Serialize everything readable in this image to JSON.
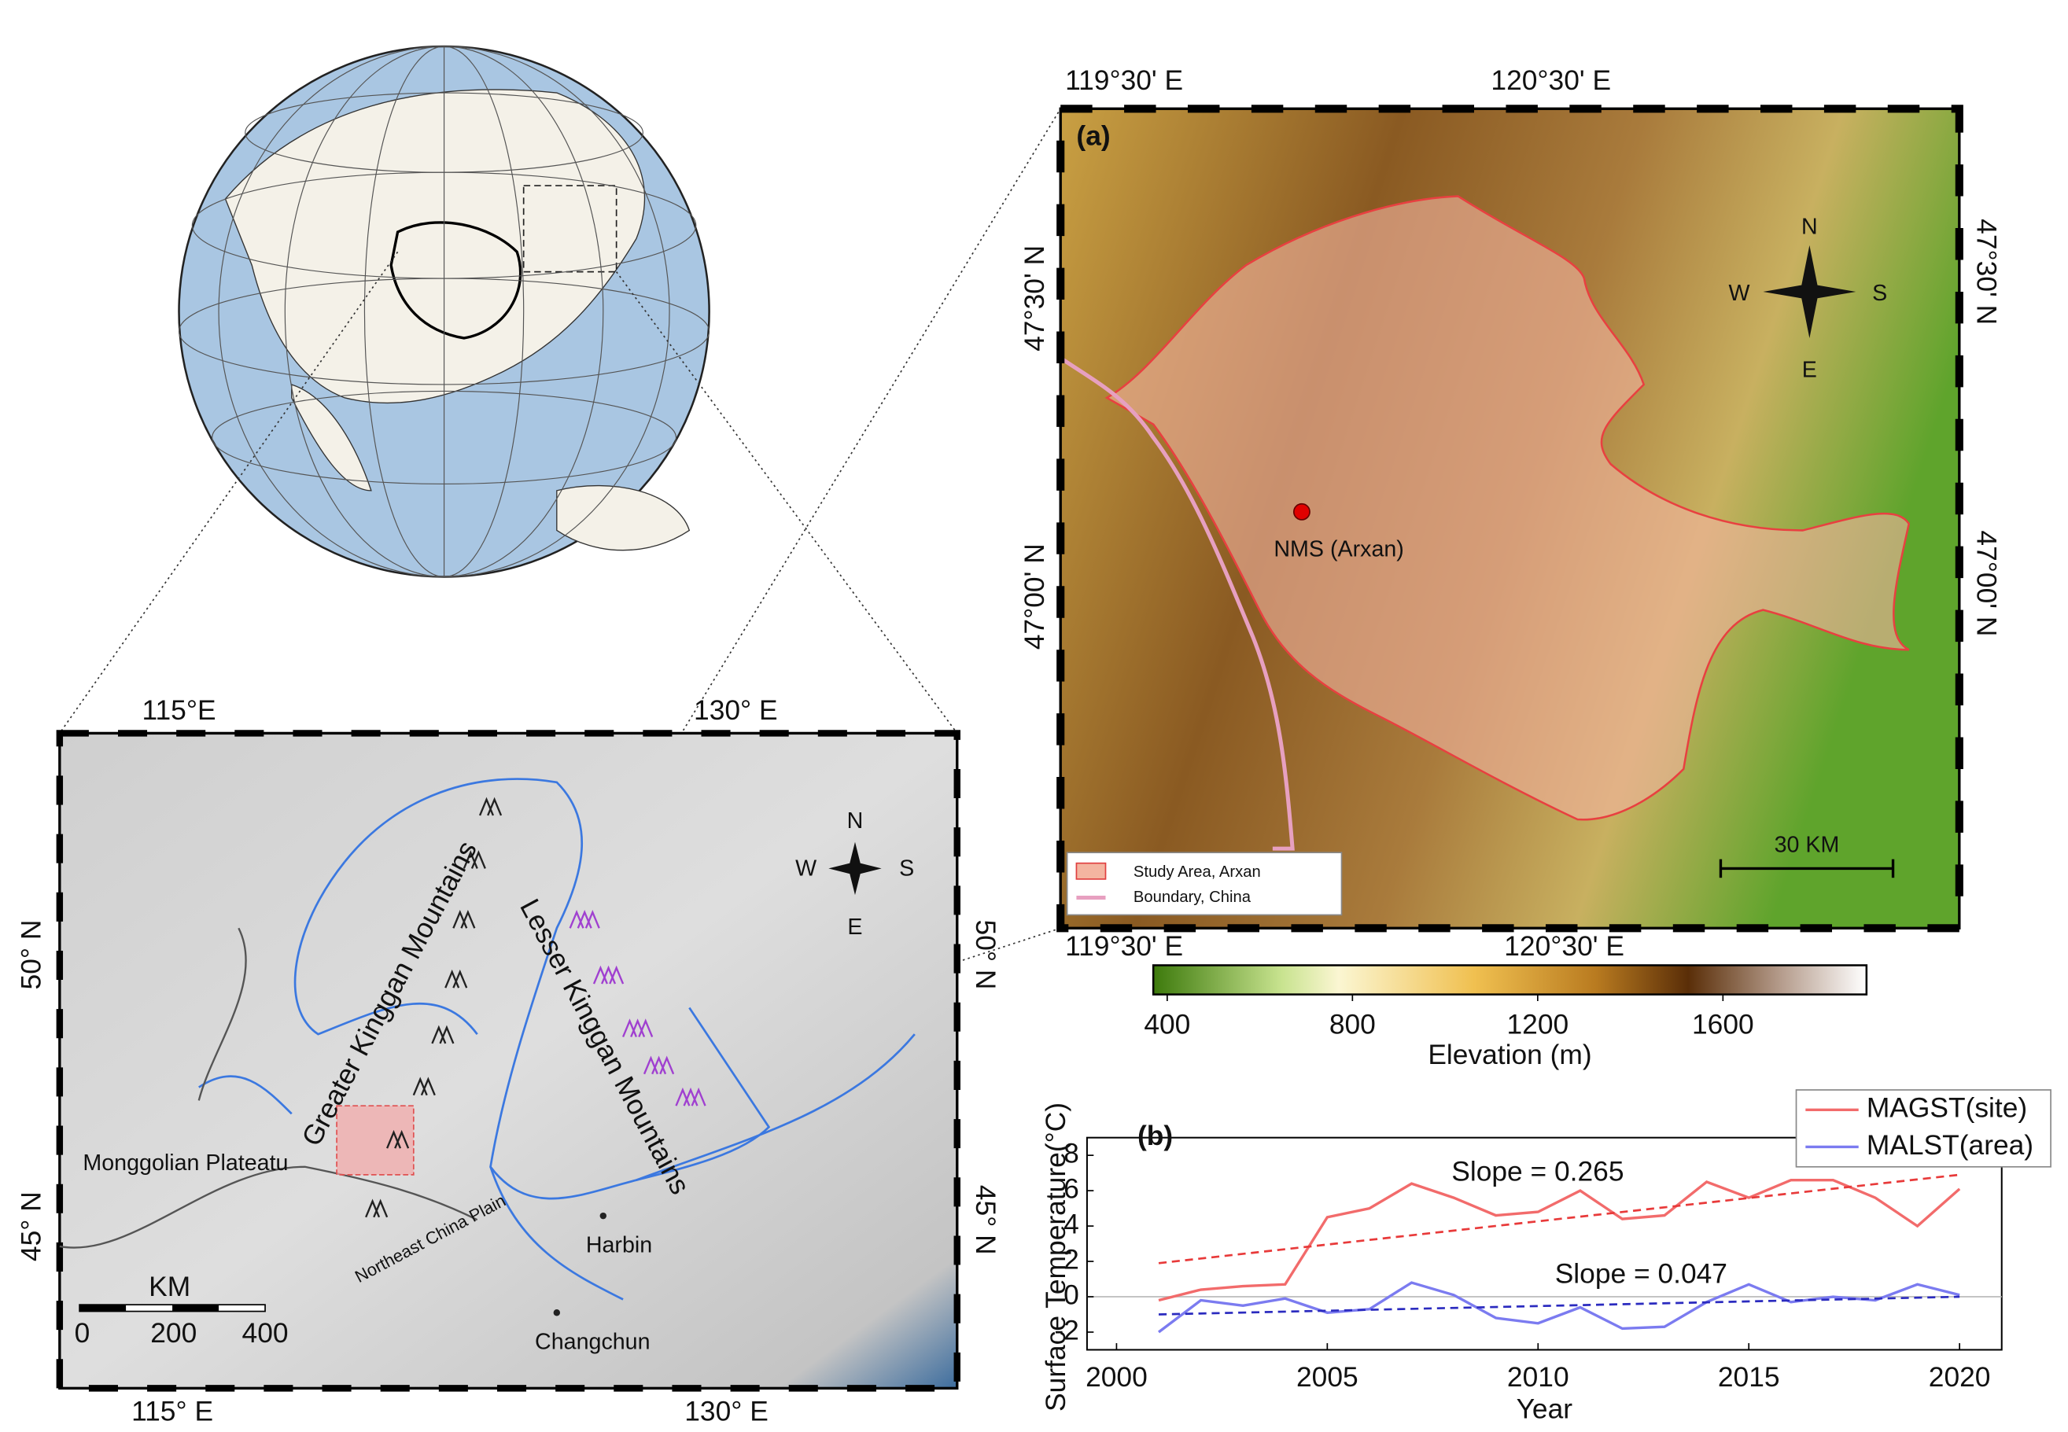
{
  "regional_map": {
    "lon_top": [
      "115°E",
      "130° E"
    ],
    "lon_bottom": [
      "115° E",
      "130° E"
    ],
    "lat_left": [
      "50° N",
      "45° N"
    ],
    "lat_right": [
      "50° N",
      "45° N"
    ],
    "compass": {
      "n": "N",
      "w": "W",
      "s": "S",
      "e": "E"
    },
    "places": {
      "greater": "Greater Kinggan Mountains",
      "lesser": "Lesser Kinggan Mountains",
      "plateau": "Monggolian Plateatu",
      "plain": "Northeast China Plain",
      "harbin": "Harbin",
      "changchun": "Changchun"
    },
    "scale_bar": {
      "unit": "KM",
      "labels": [
        "0",
        "200",
        "400"
      ]
    }
  },
  "detail_map": {
    "panel": "(a)",
    "lon_top": [
      "119°30' E",
      "120°30' E"
    ],
    "lon_bottom": [
      "119°30' E",
      "120°30' E"
    ],
    "lat_left": [
      "47°30' N",
      "47°00' N"
    ],
    "lat_right": [
      "47°30' N",
      "47°00' N"
    ],
    "compass": {
      "n": "N",
      "w": "W",
      "s": "S",
      "e": "E"
    },
    "site": "NMS (Arxan)",
    "scale_bar": "30 KM",
    "legend": [
      "Study Area, Arxan",
      "Boundary, China"
    ]
  },
  "colorbar": {
    "label": "Elevation (m)",
    "lim": [
      370,
      1910
    ],
    "ticks": [
      400,
      800,
      1200,
      1600
    ]
  },
  "chart_data": {
    "type": "line",
    "panel": "(b)",
    "xlabel": "Year",
    "ylabel": "Surface Temperature(°C)",
    "x": [
      2001,
      2002,
      2003,
      2004,
      2005,
      2006,
      2007,
      2008,
      2009,
      2010,
      2011,
      2012,
      2013,
      2014,
      2015,
      2016,
      2017,
      2018,
      2019,
      2020
    ],
    "series": [
      {
        "name": "MAGST(site)",
        "color": "#f26b6b",
        "values": [
          -0.2,
          0.4,
          0.6,
          0.7,
          4.5,
          5.0,
          6.4,
          5.6,
          4.6,
          4.8,
          6.0,
          4.4,
          4.6,
          6.5,
          5.6,
          6.6,
          6.6,
          5.6,
          4.0,
          6.1
        ]
      },
      {
        "name": "MALST(area)",
        "color": "#7b7bf0",
        "values": [
          -2.0,
          -0.2,
          -0.5,
          -0.1,
          -0.9,
          -0.7,
          0.8,
          0.1,
          -1.2,
          -1.5,
          -0.6,
          -1.8,
          -1.7,
          -0.3,
          0.7,
          -0.3,
          0.0,
          -0.2,
          0.7,
          0.1
        ]
      }
    ],
    "trendlines": [
      {
        "label": "Slope = 0.265",
        "color": "#e83a3a",
        "x": [
          2001,
          2020
        ],
        "values": [
          1.9,
          6.9
        ]
      },
      {
        "label": "Slope = 0.047",
        "color": "#2b2bbf",
        "x": [
          2001,
          2020
        ],
        "values": [
          -1.0,
          0.0
        ]
      }
    ],
    "xlim": [
      1999.3,
      2021
    ],
    "xticks": [
      2000,
      2005,
      2010,
      2015,
      2020
    ],
    "ylim": [
      -3,
      9
    ],
    "yticks": [
      -2,
      0,
      2,
      4,
      6,
      8
    ]
  }
}
